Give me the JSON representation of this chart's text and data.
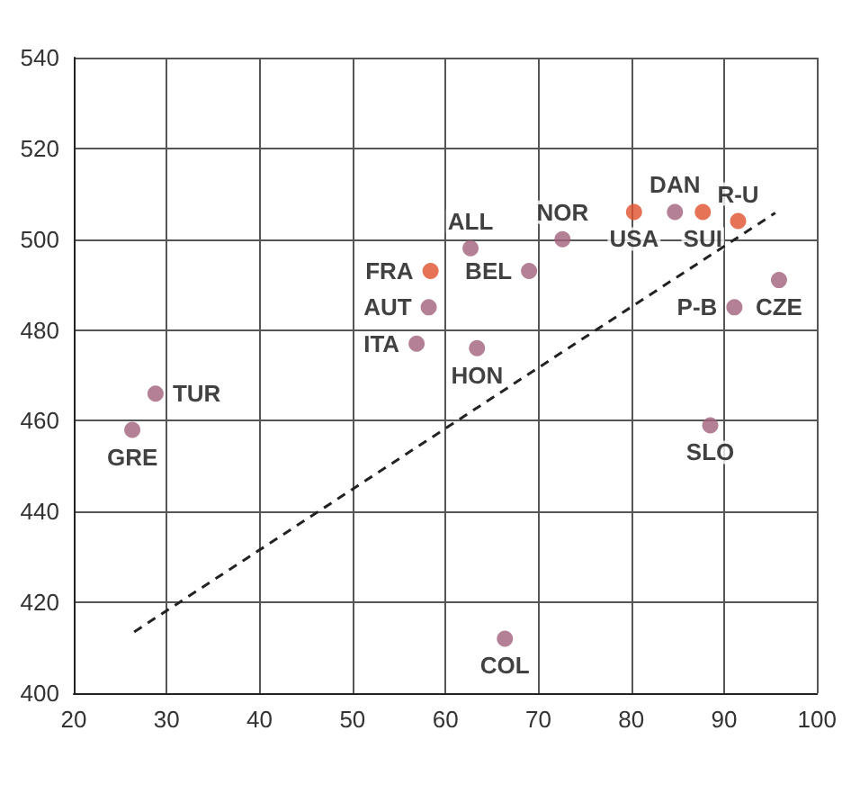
{
  "chart_data": {
    "type": "scatter",
    "marker": "circle",
    "grid": true,
    "xlim": [
      20,
      100
    ],
    "xticks": [
      20,
      30,
      40,
      50,
      60,
      70,
      80,
      90,
      100
    ],
    "ylim": [
      400,
      540
    ],
    "yticks": [
      400,
      420,
      440,
      460,
      480,
      500,
      520,
      540
    ],
    "series": [
      {
        "x": [
          28.8,
          26.3,
          58.4,
          62.7,
          58.2,
          56.9,
          63.4,
          69.0,
          72.6,
          80.3,
          84.7,
          87.7,
          91.5,
          95.9,
          91.1,
          88.5,
          66.4
        ],
        "values": [
          466,
          458,
          493,
          498,
          485,
          477,
          476,
          493,
          500,
          506,
          506,
          506,
          504,
          491,
          485,
          459,
          412
        ],
        "colors": [
          "#a0607a",
          "#a0607a",
          "#e0502a",
          "#a0607a",
          "#a0607a",
          "#a0607a",
          "#a0607a",
          "#a0607a",
          "#a0607a",
          "#e0502a",
          "#a0607a",
          "#e0502a",
          "#e0502a",
          "#a0607a",
          "#a0607a",
          "#a0607a",
          "#a0607a"
        ],
        "value_labels": [
          "TUR",
          "GRE",
          "FRA",
          "ALL",
          "AUT",
          "ITA",
          "HON",
          "BEL",
          "NOR",
          "USA",
          "DAN",
          "SUI",
          "R-U",
          "CZE",
          "P-B",
          "SLO",
          "COL"
        ]
      },
      {
        "type": "line",
        "x": [
          26.5,
          95.5
        ],
        "values": [
          413.5,
          505.8
        ],
        "color": "#222222",
        "line_style": "dashed",
        "marker": "none"
      }
    ]
  }
}
